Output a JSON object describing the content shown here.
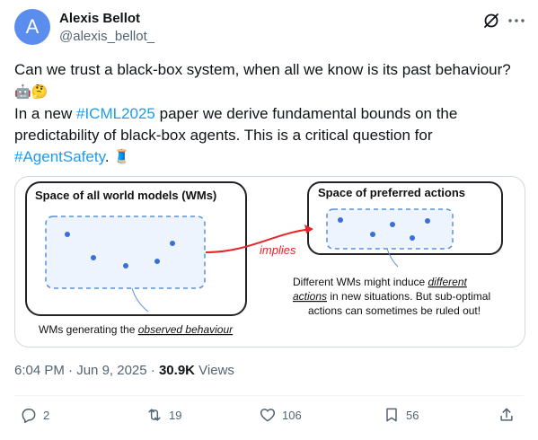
{
  "author": {
    "initial": "A",
    "name": "Alexis Bellot",
    "handle": "@alexis_bellot_",
    "avatar_color": "#5b8def"
  },
  "tweet": {
    "line1": "Can we trust a black-box system, when all we know is its past behaviour?",
    "emoji1": "🤖🤔",
    "line2_prefix": "In a new ",
    "hashtag1": "#ICML2025",
    "line2_suffix": " paper we derive fundamental bounds on the predictability of black-box agents. This is a critical question for ",
    "hashtag2": "#AgentSafety",
    "line2_end": ".",
    "emoji2": "🧵"
  },
  "figure": {
    "left_title": "Space of all world models (WMs)",
    "right_title": "Space of preferred actions",
    "arrow_label": "implies",
    "right_caption_l1a": "Different WMs might induce ",
    "right_caption_l1b": "different",
    "right_caption_l2a": "actions",
    "right_caption_l2b": " in new situations. But sub-optimal",
    "right_caption_l3": "actions can sometimes be ruled out!",
    "left_caption_a": "WMs generating the ",
    "left_caption_b": "observed behaviour"
  },
  "meta": {
    "time": "6:04 PM",
    "date": "Jun 9, 2025",
    "views_count": "30.9K",
    "views_label": "Views"
  },
  "actions": {
    "replies": "2",
    "reposts": "19",
    "likes": "106",
    "bookmarks": "56"
  },
  "colors": {
    "accent": "#1d9bf0",
    "muted": "#536471",
    "arrow": "#e8242a",
    "dot": "#3a6fd8"
  }
}
